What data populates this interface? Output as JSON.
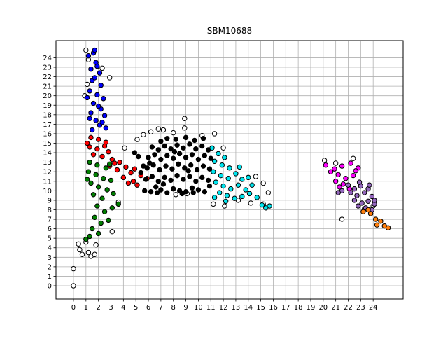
{
  "chart_data": {
    "type": "scatter",
    "title": "SBM10688",
    "xlabel": "",
    "ylabel": "",
    "xlim": [
      -1.4,
      26.4
    ],
    "ylim": [
      -1.4,
      25.8
    ],
    "grid": true,
    "x_ticks": [
      0,
      1,
      2,
      3,
      4,
      5,
      6,
      7,
      8,
      9,
      10,
      11,
      12,
      13,
      14,
      15,
      16,
      17,
      18,
      19,
      20,
      21,
      22,
      23,
      24
    ],
    "y_ticks": [
      0,
      1,
      2,
      3,
      4,
      5,
      6,
      7,
      8,
      9,
      10,
      11,
      12,
      13,
      14,
      15,
      16,
      17,
      18,
      19,
      20,
      21,
      22,
      23,
      24
    ],
    "point_edge_color": "#000000",
    "series": [
      {
        "color": "#ffffff",
        "points": [
          [
            0.0,
            0.0
          ],
          [
            0.0,
            1.8
          ],
          [
            0.4,
            4.4
          ],
          [
            0.5,
            3.8
          ],
          [
            0.7,
            3.3
          ],
          [
            1.0,
            4.6
          ],
          [
            1.2,
            3.5
          ],
          [
            1.4,
            3.1
          ],
          [
            1.7,
            3.3
          ],
          [
            1.8,
            4.3
          ],
          [
            1.0,
            24.8
          ],
          [
            1.2,
            23.8
          ],
          [
            0.9,
            20.0
          ],
          [
            1.1,
            21.2
          ],
          [
            2.3,
            22.9
          ],
          [
            2.9,
            21.9
          ],
          [
            3.1,
            5.7
          ],
          [
            3.6,
            8.8
          ],
          [
            4.1,
            14.5
          ],
          [
            5.1,
            15.4
          ],
          [
            5.6,
            15.9
          ],
          [
            6.2,
            16.2
          ],
          [
            6.8,
            16.5
          ],
          [
            7.2,
            16.4
          ],
          [
            8.0,
            16.1
          ],
          [
            8.9,
            16.6
          ],
          [
            8.9,
            17.6
          ],
          [
            10.3,
            15.8
          ],
          [
            11.3,
            16.0
          ],
          [
            12.0,
            14.5
          ],
          [
            13.2,
            9.0
          ],
          [
            14.2,
            8.7
          ],
          [
            14.6,
            11.5
          ],
          [
            15.2,
            10.8
          ],
          [
            15.6,
            9.8
          ],
          [
            15.2,
            8.6
          ],
          [
            11.2,
            8.6
          ],
          [
            12.1,
            8.4
          ],
          [
            8.2,
            9.6
          ],
          [
            9.1,
            9.7
          ],
          [
            20.1,
            13.2
          ],
          [
            21.0,
            12.9
          ],
          [
            22.4,
            13.4
          ],
          [
            21.5,
            7.0
          ],
          [
            23.3,
            8.1
          ],
          [
            24.0,
            8.4
          ],
          [
            23.8,
            7.6
          ]
        ]
      },
      {
        "color": "#0000ff",
        "points": [
          [
            1.2,
            24.2
          ],
          [
            1.6,
            24.5
          ],
          [
            1.8,
            23.5
          ],
          [
            1.4,
            22.8
          ],
          [
            2.1,
            22.4
          ],
          [
            1.5,
            21.6
          ],
          [
            2.2,
            21.1
          ],
          [
            1.3,
            20.5
          ],
          [
            1.9,
            20.1
          ],
          [
            2.4,
            19.7
          ],
          [
            1.6,
            19.2
          ],
          [
            2.2,
            18.6
          ],
          [
            1.4,
            18.2
          ],
          [
            2.5,
            17.9
          ],
          [
            1.8,
            17.4
          ],
          [
            2.1,
            16.9
          ],
          [
            1.5,
            16.4
          ],
          [
            2.6,
            16.6
          ],
          [
            1.9,
            23.1
          ],
          [
            1.7,
            21.9
          ],
          [
            1.1,
            19.8
          ],
          [
            2.0,
            18.9
          ],
          [
            2.3,
            17.2
          ],
          [
            1.3,
            17.6
          ],
          [
            1.7,
            24.8
          ]
        ]
      },
      {
        "color": "#ff0000",
        "points": [
          [
            1.4,
            15.6
          ],
          [
            2.0,
            15.4
          ],
          [
            2.6,
            15.1
          ],
          [
            1.3,
            14.6
          ],
          [
            1.9,
            14.4
          ],
          [
            2.5,
            14.7
          ],
          [
            1.6,
            13.8
          ],
          [
            2.3,
            13.6
          ],
          [
            3.1,
            13.3
          ],
          [
            3.7,
            13.0
          ],
          [
            2.9,
            12.6
          ],
          [
            3.5,
            12.2
          ],
          [
            4.2,
            12.5
          ],
          [
            4.6,
            11.9
          ],
          [
            4.0,
            11.4
          ],
          [
            4.8,
            11.0
          ],
          [
            5.4,
            11.6
          ],
          [
            5.9,
            11.3
          ],
          [
            4.4,
            10.8
          ],
          [
            5.1,
            10.6
          ],
          [
            1.1,
            15.0
          ],
          [
            2.8,
            14.1
          ],
          [
            3.3,
            12.9
          ],
          [
            4.9,
            12.3
          ]
        ]
      },
      {
        "color": "#008000",
        "points": [
          [
            1.3,
            13.0
          ],
          [
            1.9,
            12.7
          ],
          [
            2.6,
            12.4
          ],
          [
            1.2,
            12.0
          ],
          [
            1.8,
            11.7
          ],
          [
            2.4,
            11.3
          ],
          [
            3.0,
            11.1
          ],
          [
            1.4,
            10.8
          ],
          [
            2.0,
            10.4
          ],
          [
            2.7,
            10.1
          ],
          [
            3.2,
            9.7
          ],
          [
            1.6,
            9.6
          ],
          [
            2.3,
            9.2
          ],
          [
            3.6,
            8.6
          ],
          [
            1.9,
            8.4
          ],
          [
            2.5,
            7.8
          ],
          [
            1.7,
            7.2
          ],
          [
            2.2,
            6.6
          ],
          [
            1.5,
            6.0
          ],
          [
            2.0,
            5.5
          ],
          [
            1.3,
            5.2
          ],
          [
            1.0,
            4.9
          ],
          [
            3.1,
            8.2
          ],
          [
            2.8,
            6.9
          ],
          [
            1.1,
            11.2
          ],
          [
            2.9,
            12.8
          ]
        ]
      },
      {
        "color": "#000000",
        "points": [
          [
            5.7,
            10.0
          ],
          [
            6.2,
            9.9
          ],
          [
            6.6,
            10.4
          ],
          [
            7.0,
            10.1
          ],
          [
            7.5,
            9.8
          ],
          [
            8.0,
            10.2
          ],
          [
            8.5,
            10.0
          ],
          [
            9.0,
            9.9
          ],
          [
            9.5,
            10.3
          ],
          [
            10.0,
            10.1
          ],
          [
            10.5,
            9.9
          ],
          [
            5.8,
            11.2
          ],
          [
            6.3,
            11.5
          ],
          [
            6.8,
            11.0
          ],
          [
            7.3,
            11.4
          ],
          [
            7.8,
            11.1
          ],
          [
            8.3,
            11.6
          ],
          [
            8.8,
            11.2
          ],
          [
            9.3,
            11.5
          ],
          [
            9.8,
            11.0
          ],
          [
            10.3,
            11.4
          ],
          [
            10.8,
            11.1
          ],
          [
            5.9,
            12.4
          ],
          [
            6.4,
            12.7
          ],
          [
            6.9,
            12.2
          ],
          [
            7.4,
            12.6
          ],
          [
            7.9,
            12.3
          ],
          [
            8.4,
            12.8
          ],
          [
            8.9,
            12.4
          ],
          [
            9.4,
            12.7
          ],
          [
            9.9,
            12.2
          ],
          [
            10.4,
            12.6
          ],
          [
            10.9,
            12.3
          ],
          [
            6.0,
            13.5
          ],
          [
            6.5,
            13.8
          ],
          [
            7.0,
            13.3
          ],
          [
            7.5,
            13.7
          ],
          [
            8.0,
            13.4
          ],
          [
            8.5,
            13.9
          ],
          [
            9.0,
            13.5
          ],
          [
            9.5,
            13.8
          ],
          [
            10.0,
            13.3
          ],
          [
            10.5,
            13.7
          ],
          [
            11.0,
            13.4
          ],
          [
            6.3,
            14.6
          ],
          [
            6.8,
            14.3
          ],
          [
            7.3,
            14.7
          ],
          [
            7.8,
            14.4
          ],
          [
            8.3,
            14.8
          ],
          [
            8.8,
            14.5
          ],
          [
            9.3,
            14.9
          ],
          [
            9.8,
            14.4
          ],
          [
            10.3,
            14.7
          ],
          [
            10.8,
            14.3
          ],
          [
            7.5,
            15.5
          ],
          [
            8.2,
            15.4
          ],
          [
            9.0,
            15.6
          ],
          [
            9.7,
            15.3
          ],
          [
            10.4,
            15.5
          ],
          [
            7.0,
            15.2
          ],
          [
            6.1,
            12.9
          ],
          [
            5.6,
            12.6
          ],
          [
            6.7,
            9.8
          ],
          [
            5.2,
            13.6
          ],
          [
            5.4,
            11.9
          ],
          [
            4.9,
            14.0
          ],
          [
            8.7,
            9.7
          ],
          [
            9.6,
            9.8
          ],
          [
            10.9,
            10.5
          ],
          [
            7.2,
            10.7
          ],
          [
            8.1,
            14.1
          ],
          [
            9.2,
            12.1
          ]
        ]
      },
      {
        "color": "#00e5ee",
        "points": [
          [
            11.1,
            14.5
          ],
          [
            11.6,
            13.9
          ],
          [
            12.1,
            13.5
          ],
          [
            11.3,
            13.1
          ],
          [
            11.9,
            12.7
          ],
          [
            12.5,
            12.4
          ],
          [
            11.2,
            12.0
          ],
          [
            11.8,
            11.6
          ],
          [
            12.4,
            11.3
          ],
          [
            13.0,
            11.8
          ],
          [
            13.5,
            11.2
          ],
          [
            11.4,
            10.9
          ],
          [
            12.0,
            10.5
          ],
          [
            12.6,
            10.2
          ],
          [
            13.2,
            10.6
          ],
          [
            13.8,
            10.1
          ],
          [
            14.3,
            10.6
          ],
          [
            11.7,
            9.8
          ],
          [
            12.3,
            9.5
          ],
          [
            12.9,
            9.2
          ],
          [
            13.5,
            9.4
          ],
          [
            14.1,
            9.7
          ],
          [
            14.7,
            9.3
          ],
          [
            11.3,
            9.3
          ],
          [
            15.1,
            8.5
          ],
          [
            15.7,
            8.4
          ],
          [
            15.4,
            8.2
          ],
          [
            12.2,
            8.9
          ],
          [
            13.3,
            12.5
          ],
          [
            14.0,
            11.4
          ]
        ]
      },
      {
        "color": "#ff00ff",
        "points": [
          [
            20.2,
            12.7
          ],
          [
            20.9,
            12.3
          ],
          [
            21.5,
            12.6
          ],
          [
            22.2,
            12.9
          ],
          [
            22.8,
            12.4
          ],
          [
            21.2,
            11.7
          ],
          [
            21.8,
            11.3
          ],
          [
            22.4,
            11.6
          ],
          [
            21.0,
            11.0
          ],
          [
            21.6,
            10.7
          ],
          [
            22.1,
            10.2
          ],
          [
            20.6,
            12.0
          ],
          [
            22.6,
            12.1
          ],
          [
            21.3,
            10.4
          ]
        ]
      },
      {
        "color": "#9467bd",
        "points": [
          [
            21.5,
            10.0
          ],
          [
            22.0,
            10.6
          ],
          [
            22.5,
            10.2
          ],
          [
            23.0,
            10.5
          ],
          [
            23.6,
            10.2
          ],
          [
            22.2,
            9.8
          ],
          [
            22.7,
            9.5
          ],
          [
            23.3,
            9.8
          ],
          [
            23.9,
            9.4
          ],
          [
            22.5,
            9.0
          ],
          [
            23.1,
            8.7
          ],
          [
            23.6,
            8.9
          ],
          [
            24.1,
            8.6
          ],
          [
            22.8,
            8.4
          ],
          [
            23.4,
            8.2
          ],
          [
            23.9,
            8.0
          ],
          [
            21.2,
            9.8
          ],
          [
            22.9,
            10.9
          ],
          [
            23.7,
            10.6
          ],
          [
            24.1,
            9.0
          ]
        ]
      },
      {
        "color": "#ff7f0e",
        "points": [
          [
            23.2,
            7.8
          ],
          [
            23.8,
            7.6
          ],
          [
            24.2,
            7.0
          ],
          [
            24.6,
            6.8
          ],
          [
            24.3,
            6.4
          ],
          [
            24.9,
            6.3
          ],
          [
            25.2,
            6.1
          ],
          [
            23.6,
            8.0
          ]
        ]
      }
    ]
  }
}
